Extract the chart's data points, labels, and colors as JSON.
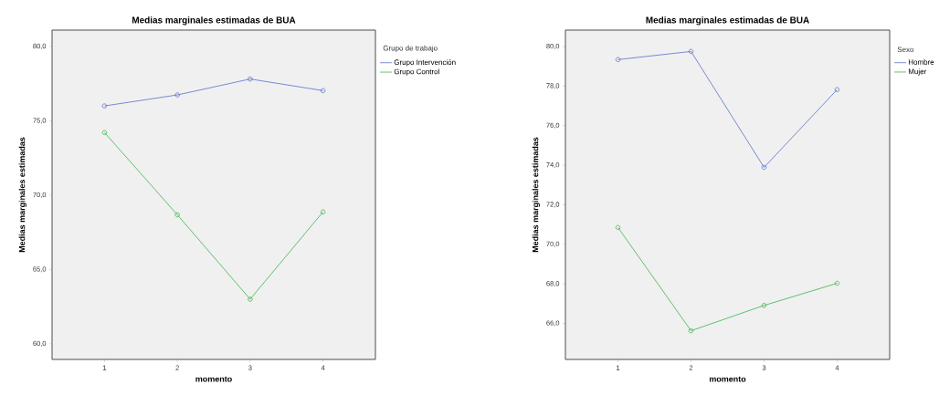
{
  "chart_data": [
    {
      "type": "line",
      "title": "Medias marginales estimadas de BUA",
      "xlabel": "momento",
      "ylabel": "Medias marginales estimadas",
      "legend_title": "Grupo de trabajo",
      "x": [
        1,
        2,
        3,
        4
      ],
      "series": [
        {
          "name": "Grupo Intervención",
          "color": "#5a6ec8",
          "values": [
            76.0,
            76.74,
            77.81,
            77.03
          ]
        },
        {
          "name": "Grupo Control",
          "color": "#3cb44a",
          "values": [
            74.21,
            68.68,
            63.0,
            68.87
          ]
        }
      ],
      "xlim": [
        0.28,
        4.72
      ],
      "ylim": [
        58.95,
        81.1
      ],
      "xticks": [
        1,
        2,
        3,
        4
      ],
      "yticks": [
        {
          "value": 60,
          "label": "60,0"
        },
        {
          "value": 65,
          "label": "65,0"
        },
        {
          "value": 70,
          "label": "70,0"
        },
        {
          "value": 75,
          "label": "75,0"
        },
        {
          "value": 80,
          "label": "80,0"
        }
      ],
      "marker": "circle",
      "legend": "top right",
      "grid": false
    },
    {
      "type": "line",
      "title": "Medias marginales estimadas de BUA",
      "xlabel": "momento",
      "ylabel": "Medias marginales estimadas",
      "legend_title": "Sexo",
      "x": [
        1,
        2,
        3,
        4
      ],
      "series": [
        {
          "name": "Hombre",
          "color": "#5a6ec8",
          "values": [
            79.34,
            79.75,
            73.89,
            77.82
          ]
        },
        {
          "name": "Mujer",
          "color": "#3cb44a",
          "values": [
            70.85,
            65.63,
            66.91,
            68.03
          ]
        }
      ],
      "xlim": [
        0.28,
        4.72
      ],
      "ylim": [
        64.18,
        80.83
      ],
      "xticks": [
        1,
        2,
        3,
        4
      ],
      "yticks": [
        {
          "value": 66,
          "label": "66,0"
        },
        {
          "value": 68,
          "label": "68,0"
        },
        {
          "value": 70,
          "label": "70,0"
        },
        {
          "value": 72,
          "label": "72,0"
        },
        {
          "value": 74,
          "label": "74,0"
        },
        {
          "value": 76,
          "label": "76,0"
        },
        {
          "value": 78,
          "label": "78,0"
        },
        {
          "value": 80,
          "label": "80,0"
        }
      ],
      "marker": "circle",
      "legend": "top right",
      "grid": false
    }
  ]
}
